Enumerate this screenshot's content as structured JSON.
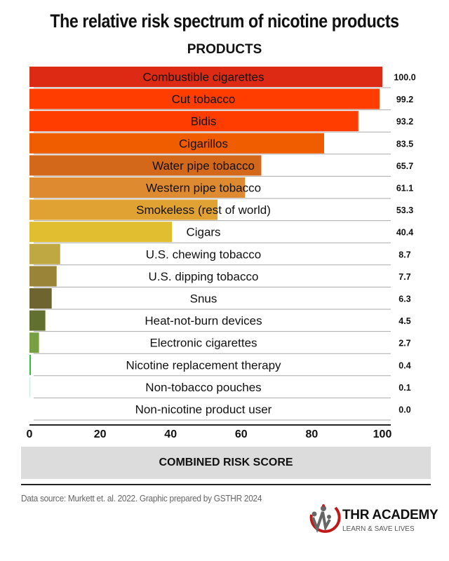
{
  "chart_data": {
    "type": "bar",
    "orientation": "horizontal",
    "title": "The relative risk spectrum of nicotine products",
    "subtitle": "PRODUCTS",
    "xlabel": "COMBINED RISK SCORE",
    "ylabel": "",
    "xlim": [
      0,
      100
    ],
    "xticks": [
      0,
      20,
      40,
      60,
      80,
      100
    ],
    "categories": [
      "Combustible cigarettes",
      "Cut tobacco",
      "Bidis",
      "Cigarillos",
      "Water pipe tobacco",
      "Western pipe tobacco",
      "Smokeless (rest of world)",
      "Cigars",
      "U.S. chewing tobacco",
      "U.S. dipping tobacco",
      "Snus",
      "Heat-not-burn devices",
      "Electronic cigarettes",
      "Nicotine replacement therapy",
      "Non-tobacco pouches",
      "Non-nicotine product user"
    ],
    "values": [
      100.0,
      99.2,
      93.2,
      83.5,
      65.7,
      61.1,
      53.3,
      40.4,
      8.7,
      7.7,
      6.3,
      4.5,
      2.7,
      0.4,
      0.1,
      0.0
    ],
    "value_labels": [
      "100.0",
      "99.2",
      "93.2",
      "83.5",
      "65.7",
      "61.1",
      "53.3",
      "40.4",
      "8.7",
      "7.7",
      "6.3",
      "4.5",
      "2.7",
      "0.4",
      "0.1",
      "0.0"
    ],
    "colors": [
      "#dc2a14",
      "#ff3d00",
      "#ff3d00",
      "#f05c00",
      "#d4681a",
      "#de8a30",
      "#e0a232",
      "#e0be30",
      "#bfa842",
      "#9a8438",
      "#6e6430",
      "#61702e",
      "#77a042",
      "#2fbf3a",
      "#c8eadb",
      "#ffffff"
    ],
    "grid": false
  },
  "footer": {
    "source": "Data source: Murkett et. al. 2022. Graphic prepared by GSTHR 2024"
  },
  "logo": {
    "name": "THR ACADEMY",
    "tagline": "LEARN & SAVE LIVES"
  }
}
